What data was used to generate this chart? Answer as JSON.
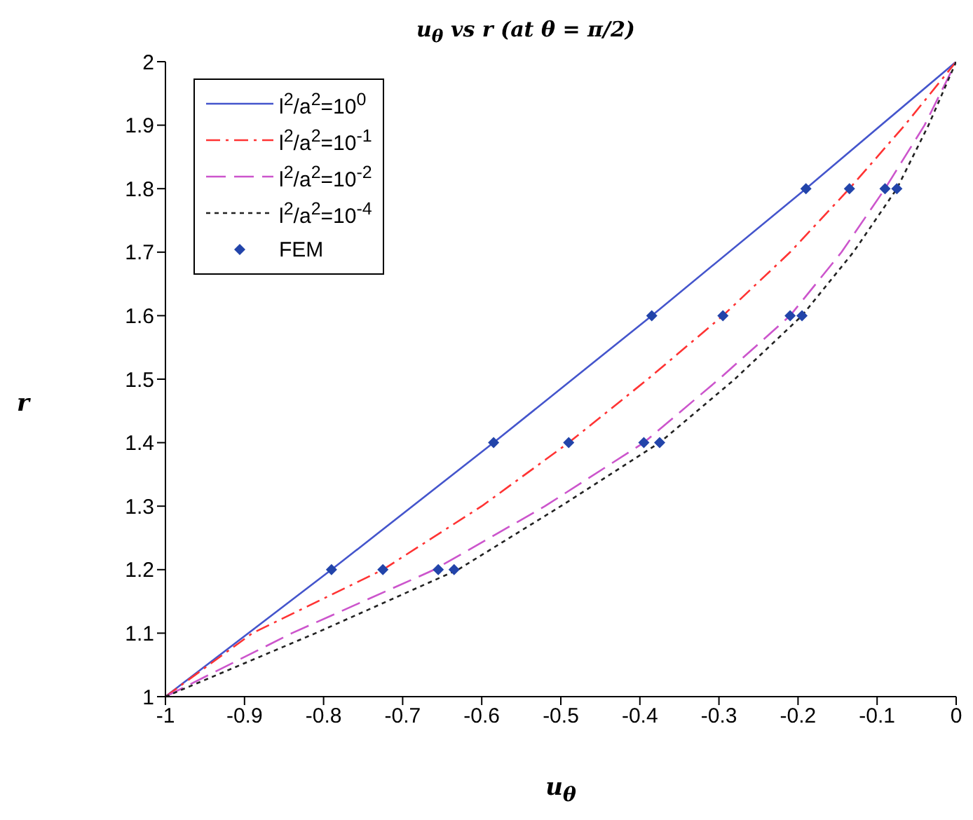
{
  "chart_data": {
    "type": "line",
    "title": "u$_{θ}$ vs r (at θ = π/2)",
    "xlabel": "u$_{θ}$",
    "ylabel": "r",
    "xlim": [
      -1,
      0
    ],
    "xticks": [
      -1,
      -0.9,
      -0.8,
      -0.7,
      -0.6,
      -0.5,
      -0.4,
      -0.3,
      -0.2,
      -0.1,
      0
    ],
    "ylim": [
      1,
      2
    ],
    "yticks": [
      1,
      1.1,
      1.2,
      1.3,
      1.4,
      1.5,
      1.6,
      1.7,
      1.8,
      1.9,
      2
    ],
    "grid": false,
    "legend": "top left",
    "series": [
      {
        "name": "l$^{2}$/a$^{2}$=10$^{0}$",
        "color": "#4455cc",
        "line_style": "solid",
        "marker": "none",
        "x": [
          -1,
          -0.79,
          -0.585,
          -0.385,
          -0.19,
          0
        ],
        "values": [
          1,
          1.2,
          1.4,
          1.6,
          1.8,
          2
        ]
      },
      {
        "name": "l$^{2}$/a$^{2}$=10$^{-1}$",
        "color": "#ff3333",
        "line_style": "dashdot",
        "marker": "none",
        "x": [
          -1,
          -0.89,
          -0.725,
          -0.6,
          -0.49,
          -0.39,
          -0.295,
          -0.21,
          -0.135,
          -0.065,
          0
        ],
        "values": [
          1,
          1.1,
          1.2,
          1.3,
          1.4,
          1.5,
          1.6,
          1.7,
          1.8,
          1.9,
          2
        ]
      },
      {
        "name": "l$^{2}$/a$^{2}$=10$^{-2}$",
        "color": "#cc55cc",
        "line_style": "dashed",
        "marker": "none",
        "x": [
          -1,
          -0.84,
          -0.66,
          -0.52,
          -0.395,
          -0.3,
          -0.21,
          -0.145,
          -0.09,
          -0.04,
          0
        ],
        "values": [
          1,
          1.1,
          1.2,
          1.3,
          1.4,
          1.5,
          1.6,
          1.7,
          1.8,
          1.9,
          2
        ]
      },
      {
        "name": "l$^{2}$/a$^{2}$=10$^{-4}$",
        "color": "#222222",
        "line_style": "dotted",
        "marker": "none",
        "x": [
          -1,
          -0.81,
          -0.63,
          -0.5,
          -0.375,
          -0.28,
          -0.195,
          -0.13,
          -0.075,
          -0.035,
          0
        ],
        "values": [
          1,
          1.1,
          1.2,
          1.3,
          1.4,
          1.5,
          1.6,
          1.7,
          1.8,
          1.9,
          2
        ]
      },
      {
        "name": "FEM",
        "type": "scatter",
        "color": "#2244aa",
        "marker": "diamond",
        "x": [
          -0.79,
          -0.585,
          -0.385,
          -0.19,
          -0.725,
          -0.49,
          -0.295,
          -0.135,
          -0.655,
          -0.395,
          -0.21,
          -0.09,
          -0.635,
          -0.375,
          -0.195,
          -0.075
        ],
        "values": [
          1.2,
          1.4,
          1.6,
          1.8,
          1.2,
          1.4,
          1.6,
          1.8,
          1.2,
          1.4,
          1.6,
          1.8,
          1.2,
          1.4,
          1.6,
          1.8
        ]
      }
    ]
  }
}
